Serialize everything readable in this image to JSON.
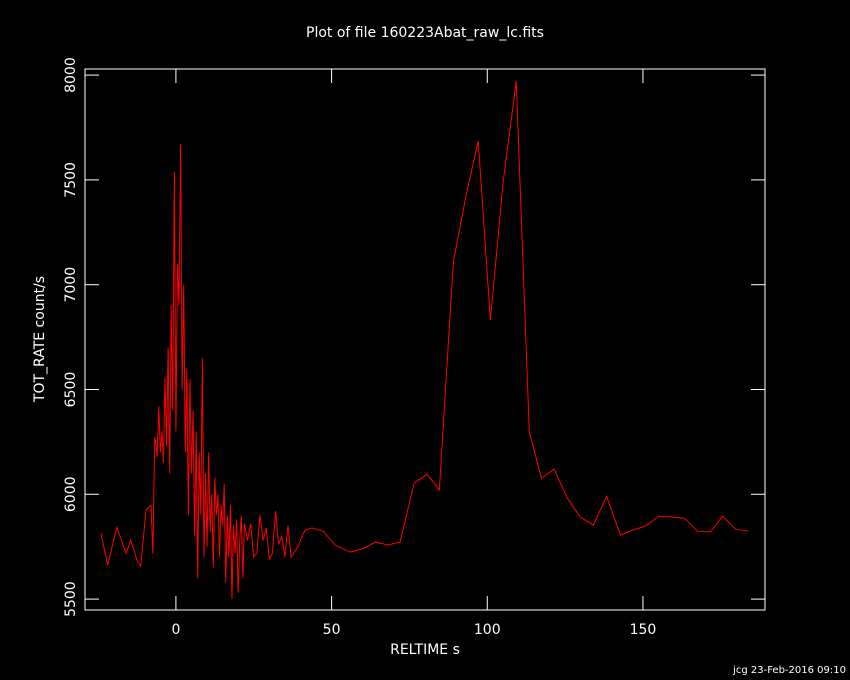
{
  "chart_data": {
    "type": "line",
    "title": "Plot of file 160223Abat_raw_lc.fits",
    "x_label": "RELTIME  s",
    "y_label": "TOT_RATE  count/s",
    "footer": "jcg 23-Feb-2016 09:10",
    "xlim": [
      -29.2,
      189.2
    ],
    "ylim": [
      5448,
      8029
    ],
    "xticks": [
      0,
      50,
      100,
      150
    ],
    "yticks": [
      5500,
      6000,
      6500,
      7000,
      7500,
      8000
    ],
    "x": [
      -24.1,
      -21.9,
      -19,
      -16,
      -14.5,
      -12.5,
      -11.3,
      -9.6,
      -8,
      -7.4,
      -6.8,
      -6.5,
      -6,
      -5.5,
      -5,
      -4.5,
      -4,
      -3.5,
      -3,
      -2.5,
      -2,
      -1.5,
      -1,
      -0.5,
      0,
      0.5,
      1,
      1.5,
      2,
      2.5,
      3,
      3.5,
      4,
      4.5,
      5,
      5.5,
      6,
      6.5,
      7,
      7.5,
      8,
      8.5,
      9,
      9.5,
      10,
      10.5,
      11,
      11.5,
      12,
      12.5,
      13,
      13.5,
      14,
      14.5,
      15,
      15.5,
      16,
      16.5,
      17,
      17.5,
      18,
      18.5,
      19,
      19.5,
      20,
      20.5,
      21,
      21.5,
      22,
      23,
      24,
      25,
      26,
      27,
      28,
      29,
      30,
      31,
      32,
      33,
      34,
      35,
      36,
      37,
      38.9,
      41.5,
      43.7,
      47.3,
      51.1,
      56,
      60.5,
      64,
      68.2,
      72,
      76.5,
      80.7,
      84.6,
      89.1,
      93.2,
      97.1,
      101,
      105.1,
      109.3,
      113.5,
      117.4,
      121.5,
      125.7,
      129.9,
      134.1,
      138.3,
      142.8,
      146.6,
      150.8,
      155,
      159.2,
      163.3,
      167.5,
      171.7,
      175.6,
      179.7,
      183.9
    ],
    "series": [
      {
        "color": "#ff0000",
        "values": [
          5815,
          5662,
          5843,
          5719,
          5781,
          5686,
          5657,
          5925,
          5948,
          5719,
          6273,
          6250,
          6180,
          6420,
          6200,
          6300,
          6150,
          6560,
          6230,
          6700,
          6100,
          6900,
          6400,
          7540,
          6300,
          7100,
          6900,
          7670,
          6500,
          7000,
          6200,
          6600,
          5900,
          6550,
          6100,
          6400,
          5800,
          6300,
          5600,
          6200,
          5900,
          6650,
          5700,
          6100,
          5750,
          6200,
          5820,
          6000,
          5650,
          6080,
          5900,
          6000,
          5700,
          5950,
          5850,
          6050,
          5580,
          5900,
          5700,
          5950,
          5500,
          5850,
          5720,
          5880,
          5530,
          5780,
          5900,
          5600,
          5860,
          5780,
          5860,
          5700,
          5720,
          5900,
          5780,
          5840,
          5690,
          5720,
          5920,
          5760,
          5800,
          5700,
          5850,
          5700,
          5743,
          5830,
          5839,
          5824,
          5758,
          5724,
          5743,
          5772,
          5758,
          5772,
          6053,
          6096,
          6020,
          7108,
          7427,
          7685,
          6831,
          7490,
          7971,
          6297,
          6077,
          6120,
          5982,
          5891,
          5853,
          5991,
          5805,
          5829,
          5848,
          5896,
          5891,
          5886,
          5824,
          5820,
          5896,
          5834,
          5824
        ]
      }
    ],
    "grid": false
  }
}
